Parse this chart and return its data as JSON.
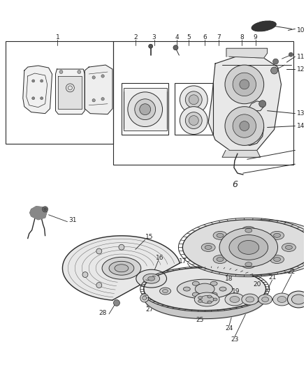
{
  "bg_color": "#ffffff",
  "line_color": "#2a2a2a",
  "label_color": "#222222",
  "fig_w": 4.38,
  "fig_h": 5.33,
  "dpi": 100
}
